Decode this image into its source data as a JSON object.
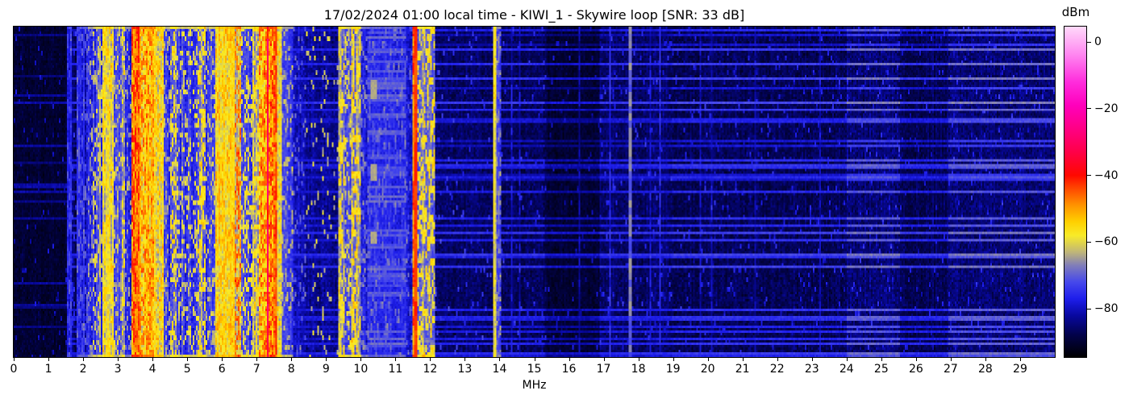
{
  "chart_data": {
    "type": "heatmap",
    "subtype": "radio-spectrogram-waterfall",
    "title": "17/02/2024 01:00 local time - KIWI_1 - Skywire loop [SNR: 33 dB]",
    "datetime_local": "17/02/2024 01:00",
    "station": "KIWI_1",
    "antenna": "Skywire loop",
    "snr_db": 33,
    "xlabel": "MHz",
    "x_range_mhz": [
      0,
      30
    ],
    "x_ticks": [
      0,
      1,
      2,
      3,
      4,
      5,
      6,
      7,
      8,
      9,
      10,
      11,
      12,
      13,
      14,
      15,
      16,
      17,
      18,
      19,
      20,
      21,
      22,
      23,
      24,
      25,
      26,
      27,
      28,
      29
    ],
    "grid": false,
    "legend": false,
    "colorbar": {
      "label": "dBm",
      "tick_values": [
        0,
        -20,
        -40,
        -60,
        -80
      ],
      "tick_labels": [
        "0",
        "−20",
        "−40",
        "−60",
        "−80"
      ],
      "vmax_dbm": 4.6,
      "vmin_dbm": -94.5,
      "position": "right"
    },
    "colormap_stops": [
      [
        -95,
        0,
        0,
        0
      ],
      [
        -88,
        2,
        2,
        72
      ],
      [
        -82,
        8,
        8,
        160
      ],
      [
        -77,
        30,
        30,
        235
      ],
      [
        -72,
        70,
        72,
        235
      ],
      [
        -67,
        128,
        125,
        185
      ],
      [
        -63,
        192,
        182,
        120
      ],
      [
        -58,
        248,
        235,
        40
      ],
      [
        -54,
        255,
        208,
        0
      ],
      [
        -49,
        255,
        148,
        0
      ],
      [
        -44,
        255,
        72,
        0
      ],
      [
        -40,
        255,
        8,
        0
      ],
      [
        -33,
        255,
        0,
        72
      ],
      [
        -26,
        255,
        0,
        132
      ],
      [
        -19,
        255,
        0,
        188
      ],
      [
        -12,
        255,
        44,
        220
      ],
      [
        -4,
        255,
        132,
        240
      ],
      [
        5,
        255,
        218,
        250
      ]
    ],
    "bands_fields": [
      "f0_mhz",
      "f1_mhz",
      "base_dbm",
      "noise_sigma",
      "burst_prob",
      "burst_level_dbm",
      "burst_len_cells",
      "col_jitter"
    ],
    "bands": [
      [
        0,
        1.52,
        -90,
        2.5,
        0.03,
        -81,
        2,
        1
      ],
      [
        1.52,
        1.66,
        -77,
        3,
        0.3,
        -73,
        3,
        2
      ],
      [
        1.66,
        1.82,
        -86,
        3,
        0.1,
        -77,
        2,
        2
      ],
      [
        1.82,
        2.12,
        -78,
        3.5,
        0.3,
        -71,
        3,
        4
      ],
      [
        2.12,
        2.3,
        -77,
        4,
        0.3,
        -66,
        2,
        4
      ],
      [
        2.3,
        2.55,
        -75,
        4,
        0.35,
        -62,
        2,
        4
      ],
      [
        2.55,
        2.88,
        -62,
        4,
        0.55,
        -56,
        3,
        3
      ],
      [
        2.88,
        3.1,
        -74,
        4,
        0.3,
        -63,
        2,
        4
      ],
      [
        3.1,
        3.22,
        -68,
        5,
        0.4,
        -58,
        2,
        3
      ],
      [
        3.22,
        3.38,
        -76,
        4,
        0.25,
        -66,
        2,
        3
      ],
      [
        3.38,
        3.62,
        -50,
        5,
        0.5,
        -42,
        3,
        3
      ],
      [
        3.62,
        4.05,
        -56,
        5,
        0.5,
        -48,
        2,
        4
      ],
      [
        4.05,
        4.32,
        -60,
        5,
        0.45,
        -54,
        2,
        4
      ],
      [
        4.32,
        4.52,
        -75,
        4,
        0.3,
        -65,
        2,
        4
      ],
      [
        4.52,
        4.72,
        -68,
        5,
        0.4,
        -58,
        2,
        4
      ],
      [
        4.72,
        5.28,
        -74,
        4,
        0.28,
        -61,
        2,
        4
      ],
      [
        5.28,
        5.52,
        -68,
        5,
        0.4,
        -57,
        2,
        4
      ],
      [
        5.52,
        5.82,
        -75,
        4,
        0.25,
        -63,
        2,
        4
      ],
      [
        5.82,
        6.38,
        -58,
        4,
        0.55,
        -53,
        3,
        3
      ],
      [
        6.38,
        6.55,
        -62,
        5,
        0.45,
        -47,
        2,
        3
      ],
      [
        6.55,
        6.88,
        -72,
        5,
        0.35,
        -60,
        2,
        4
      ],
      [
        6.88,
        7.08,
        -66,
        5,
        0.4,
        -57,
        2,
        4
      ],
      [
        7.08,
        7.3,
        -54,
        5,
        0.5,
        -47,
        2,
        3
      ],
      [
        7.3,
        7.36,
        -45,
        5,
        0.6,
        -34,
        4,
        2
      ],
      [
        7.36,
        7.55,
        -52,
        5,
        0.5,
        -44,
        2,
        3
      ],
      [
        7.55,
        7.72,
        -60,
        5,
        0.4,
        -55,
        2,
        3
      ],
      [
        7.72,
        8.05,
        -74,
        4,
        0.25,
        -64,
        2,
        3
      ],
      [
        8.05,
        8.4,
        -80,
        4,
        0.15,
        -70,
        2,
        2
      ],
      [
        8.4,
        9.35,
        -83,
        4,
        0.05,
        -62,
        2,
        2
      ],
      [
        9.35,
        9.55,
        -68,
        5,
        0.45,
        -57,
        3,
        4
      ],
      [
        9.55,
        9.72,
        -73,
        5,
        0.35,
        -61,
        2,
        3
      ],
      [
        9.72,
        10.02,
        -67,
        5,
        0.45,
        -56,
        3,
        4
      ],
      [
        10.02,
        10.18,
        -78,
        4,
        0.2,
        -68,
        2,
        2
      ],
      [
        10.18,
        11.32,
        -76,
        3.5,
        0.2,
        -70,
        3,
        2
      ],
      [
        11.32,
        11.5,
        -80,
        4,
        0.15,
        -70,
        2,
        2
      ],
      [
        11.5,
        11.62,
        -50,
        4,
        0.5,
        -44,
        4,
        2
      ],
      [
        11.62,
        11.78,
        -70,
        5,
        0.4,
        -58,
        2,
        3
      ],
      [
        11.78,
        12.12,
        -68,
        5,
        0.45,
        -57,
        3,
        4
      ],
      [
        12.12,
        13.8,
        -86,
        3.5,
        0.04,
        -75,
        2,
        1.5
      ],
      [
        13.8,
        13.92,
        -62,
        4,
        0.5,
        -58,
        6,
        2
      ],
      [
        13.92,
        14.05,
        -74,
        4,
        0.3,
        -67,
        2,
        2
      ],
      [
        14.05,
        15.35,
        -87,
        3.5,
        0.04,
        -77,
        2,
        1.5
      ],
      [
        15.35,
        16.9,
        -90,
        2.5,
        0.02,
        -81,
        2,
        1
      ],
      [
        16.9,
        19,
        -86,
        3.5,
        0.05,
        -77,
        2,
        1.5
      ],
      [
        19,
        24,
        -87,
        3.5,
        0.04,
        -78,
        2,
        1.5
      ],
      [
        24,
        25.55,
        -85,
        4,
        0.05,
        -77,
        2,
        1.5
      ],
      [
        25.55,
        26.95,
        -87,
        3,
        0.03,
        -79,
        2,
        1.5
      ],
      [
        26.95,
        30,
        -85,
        4,
        0.05,
        -77,
        2,
        1.5
      ]
    ],
    "carriers_fields": [
      "f_mhz",
      "width_cells",
      "level_dbm",
      "jitter_db",
      "fade_prob",
      "fade_drop_db",
      "seg_len_cells"
    ],
    "carriers": [
      [
        2.49,
        1,
        -62,
        4,
        0.4,
        6,
        3
      ],
      [
        7.32,
        1,
        -30,
        8,
        0.12,
        10,
        5
      ],
      [
        7.55,
        1,
        -43,
        6,
        0.2,
        6,
        4
      ],
      [
        11.56,
        2,
        -43,
        5,
        0.08,
        5,
        6
      ],
      [
        13.86,
        1,
        -58,
        4,
        0.3,
        6,
        6
      ],
      [
        13.97,
        1,
        -68,
        3,
        0.5,
        6,
        3
      ],
      [
        14.35,
        1,
        -77,
        3,
        0.5,
        5,
        3
      ],
      [
        14.6,
        1,
        -78,
        3,
        0.5,
        5,
        3
      ],
      [
        16.3,
        1,
        -80,
        3,
        0.5,
        4,
        3
      ],
      [
        17.2,
        1,
        -74,
        3,
        0.4,
        5,
        4
      ],
      [
        17.75,
        2,
        -66,
        3,
        0.45,
        5,
        3
      ],
      [
        18.35,
        1,
        -77,
        3,
        0.5,
        4,
        3
      ],
      [
        18.65,
        1,
        -75,
        3,
        0.4,
        5,
        3
      ],
      [
        19.78,
        1,
        -79,
        3,
        0.5,
        4,
        3
      ],
      [
        20.1,
        1,
        -80,
        3,
        0.5,
        4,
        3
      ],
      [
        21.35,
        1,
        -81,
        2,
        0.5,
        3,
        3
      ],
      [
        23.25,
        1,
        -80,
        2,
        0.5,
        3,
        3
      ]
    ],
    "patches_fields": [
      "f0_mhz",
      "f1_mhz",
      "row0",
      "row1",
      "level_dbm"
    ],
    "patches": [
      [
        10.28,
        10.45,
        22,
        29,
        -64
      ],
      [
        10.28,
        10.45,
        57,
        63,
        -64
      ],
      [
        10.28,
        10.45,
        85,
        89,
        -64
      ]
    ],
    "row_streak_offsets": [
      {
        "f0": 12,
        "f1": 15.3,
        "off": -2
      },
      {
        "f0": 15.3,
        "f1": 16.9,
        "off": -6
      },
      {
        "f0": 16.9,
        "f1": 19,
        "off": -2
      },
      {
        "f0": 19,
        "f1": 24,
        "off": 0
      },
      {
        "f0": 24,
        "f1": 25.55,
        "off": 5
      },
      {
        "f0": 25.55,
        "f1": 26.95,
        "off": -1
      },
      {
        "f0": 26.95,
        "f1": 30,
        "off": 5
      }
    ],
    "render": {
      "cols": 645,
      "rows": 137,
      "seed": 1337
    }
  }
}
